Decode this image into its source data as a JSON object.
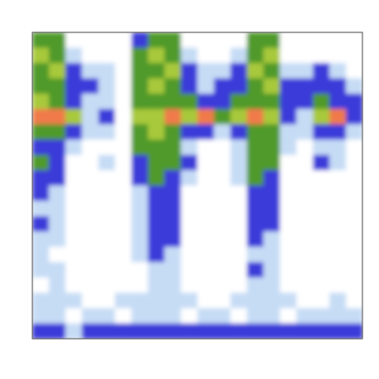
{
  "chart_data": {
    "type": "heatmap",
    "colors": [
      "#ffffff",
      "#c6dcf5",
      "#3b3bd9",
      "#4f9a2a",
      "#a8c93a",
      "#f07a4a"
    ],
    "values": [
      [
        3,
        3,
        0,
        0,
        0,
        0,
        2,
        3,
        3,
        0,
        0,
        0,
        0,
        3,
        3,
        0,
        0,
        0,
        0,
        0
      ],
      [
        4,
        3,
        1,
        0,
        0,
        0,
        3,
        4,
        3,
        1,
        0,
        0,
        1,
        3,
        4,
        0,
        0,
        0,
        0,
        0
      ],
      [
        3,
        4,
        2,
        1,
        1,
        0,
        3,
        3,
        4,
        2,
        1,
        1,
        2,
        4,
        3,
        1,
        1,
        2,
        1,
        0
      ],
      [
        3,
        3,
        2,
        2,
        1,
        0,
        3,
        4,
        3,
        2,
        1,
        2,
        2,
        3,
        4,
        2,
        2,
        2,
        2,
        1
      ],
      [
        4,
        3,
        2,
        1,
        1,
        0,
        3,
        3,
        3,
        3,
        2,
        2,
        3,
        3,
        3,
        2,
        2,
        3,
        2,
        2
      ],
      [
        5,
        5,
        4,
        1,
        2,
        0,
        4,
        4,
        5,
        4,
        5,
        3,
        4,
        5,
        4,
        2,
        1,
        4,
        5,
        2
      ],
      [
        3,
        3,
        2,
        1,
        1,
        0,
        3,
        4,
        3,
        2,
        2,
        1,
        2,
        3,
        3,
        1,
        1,
        2,
        2,
        1
      ],
      [
        2,
        2,
        1,
        0,
        0,
        0,
        3,
        3,
        3,
        1,
        0,
        0,
        1,
        3,
        3,
        1,
        0,
        1,
        1,
        0
      ],
      [
        3,
        2,
        0,
        0,
        1,
        0,
        2,
        3,
        3,
        2,
        0,
        0,
        1,
        3,
        3,
        0,
        0,
        2,
        1,
        0
      ],
      [
        2,
        2,
        0,
        0,
        0,
        0,
        2,
        3,
        2,
        1,
        0,
        0,
        1,
        3,
        2,
        0,
        0,
        0,
        0,
        0
      ],
      [
        2,
        1,
        0,
        0,
        0,
        0,
        1,
        2,
        2,
        0,
        0,
        0,
        0,
        2,
        2,
        0,
        0,
        0,
        0,
        0
      ],
      [
        1,
        1,
        0,
        0,
        0,
        0,
        1,
        2,
        2,
        0,
        0,
        0,
        0,
        2,
        2,
        0,
        0,
        0,
        0,
        0
      ],
      [
        2,
        1,
        0,
        0,
        0,
        0,
        1,
        2,
        2,
        0,
        0,
        0,
        0,
        2,
        2,
        0,
        0,
        0,
        0,
        0
      ],
      [
        1,
        1,
        0,
        0,
        0,
        0,
        1,
        2,
        2,
        0,
        0,
        0,
        0,
        2,
        1,
        0,
        0,
        0,
        0,
        0
      ],
      [
        1,
        0,
        0,
        0,
        0,
        0,
        1,
        2,
        1,
        0,
        0,
        0,
        0,
        1,
        1,
        0,
        0,
        0,
        0,
        0
      ],
      [
        1,
        1,
        0,
        0,
        0,
        0,
        0,
        1,
        1,
        0,
        0,
        0,
        0,
        2,
        1,
        0,
        0,
        0,
        0,
        0
      ],
      [
        0,
        1,
        0,
        0,
        0,
        0,
        0,
        1,
        1,
        0,
        0,
        0,
        0,
        1,
        1,
        0,
        0,
        0,
        0,
        0
      ],
      [
        1,
        1,
        1,
        0,
        0,
        1,
        1,
        1,
        1,
        1,
        0,
        0,
        1,
        1,
        1,
        1,
        0,
        0,
        1,
        0
      ],
      [
        1,
        1,
        0,
        1,
        1,
        0,
        1,
        1,
        1,
        0,
        1,
        1,
        0,
        1,
        1,
        0,
        1,
        1,
        1,
        1
      ],
      [
        2,
        2,
        1,
        2,
        2,
        2,
        2,
        2,
        2,
        2,
        2,
        2,
        2,
        2,
        2,
        2,
        2,
        2,
        2,
        2
      ]
    ]
  }
}
